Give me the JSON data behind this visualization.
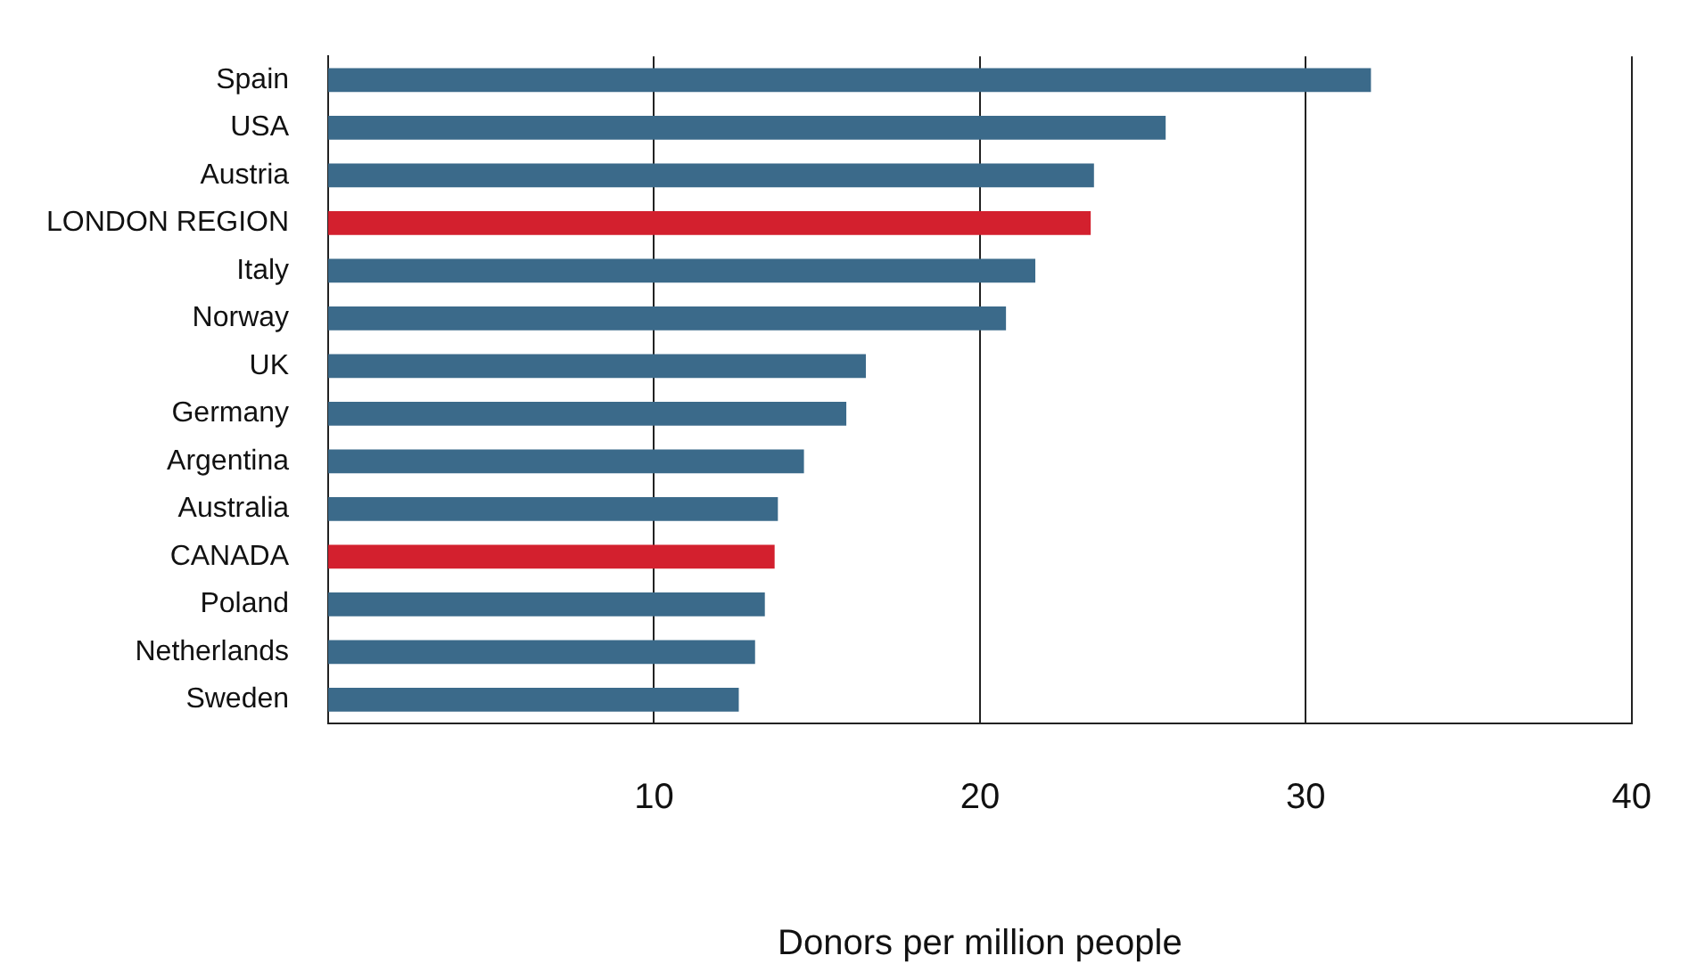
{
  "chart_data": {
    "type": "bar",
    "orientation": "horizontal",
    "xlabel": "Donors per million people",
    "categories": [
      "Spain",
      "USA",
      "Austria",
      "LONDON REGION",
      "Italy",
      "Norway",
      "UK",
      "Germany",
      "Argentina",
      "Australia",
      "CANADA",
      "Poland",
      "Netherlands",
      "Sweden"
    ],
    "values": [
      32.0,
      25.7,
      23.5,
      23.4,
      21.7,
      20.8,
      16.5,
      15.9,
      14.6,
      13.8,
      13.7,
      13.4,
      13.1,
      12.6
    ],
    "colors": [
      "#3b6a8a",
      "#3b6a8a",
      "#3b6a8a",
      "#d3202e",
      "#3b6a8a",
      "#3b6a8a",
      "#3b6a8a",
      "#3b6a8a",
      "#3b6a8a",
      "#3b6a8a",
      "#d3202e",
      "#3b6a8a",
      "#3b6a8a",
      "#3b6a8a"
    ],
    "xlim": [
      0,
      40
    ],
    "xticks": [
      10,
      20,
      30,
      40
    ],
    "grid": "x",
    "legend": false
  }
}
